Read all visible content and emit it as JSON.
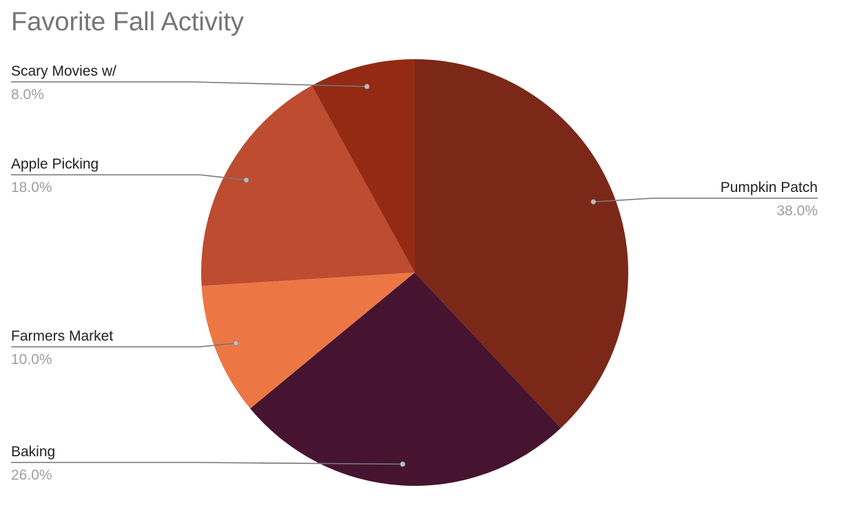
{
  "chart_data": {
    "type": "pie",
    "title": "Favorite Fall Activity",
    "slices": [
      {
        "label": "Pumpkin Patch",
        "value": 38.0,
        "value_label": "38.0%",
        "color": "#7b2819"
      },
      {
        "label": "Baking",
        "value": 26.0,
        "value_label": "26.0%",
        "color": "#461430"
      },
      {
        "label": "Farmers Market",
        "value": 10.0,
        "value_label": "10.0%",
        "color": "#ec7744"
      },
      {
        "label": "Apple Picking",
        "value": 18.0,
        "value_label": "18.0%",
        "color": "#bd4c31"
      },
      {
        "label": "Scary Movies w/",
        "value": 8.0,
        "value_label": "8.0%",
        "color": "#942a14"
      }
    ],
    "start_angle": "12 o'clock",
    "direction": "clockwise",
    "legend": "none"
  },
  "colors": {
    "title": "#757575",
    "label": "#222222",
    "percent": "#9e9e9e",
    "leader": "#777777"
  }
}
